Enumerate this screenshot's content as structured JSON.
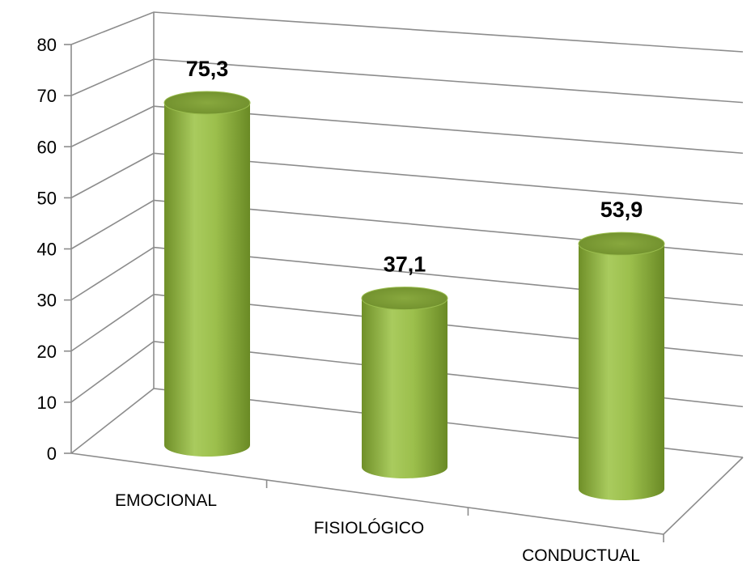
{
  "chart_data": {
    "type": "bar",
    "style": "3d-cylinder",
    "categories": [
      "EMOCIONAL",
      "FISIOLÓGICO",
      "CONDUCTUAL"
    ],
    "values": [
      75.3,
      37.1,
      53.9
    ],
    "value_labels": [
      "75,3",
      "37,1",
      "53,9"
    ],
    "yticks": [
      "0",
      "10",
      "20",
      "30",
      "40",
      "50",
      "60",
      "70",
      "80"
    ],
    "ylim": [
      0,
      80
    ],
    "grid": true,
    "legend": "none",
    "title": "",
    "xlabel": "",
    "ylabel": "",
    "colors": {
      "bar_light": "#a8c95c",
      "bar_mid": "#8bb03c",
      "bar_dark": "#5f7f22",
      "top_fill": "#7d9c34",
      "grid": "#8c8c8c"
    }
  }
}
